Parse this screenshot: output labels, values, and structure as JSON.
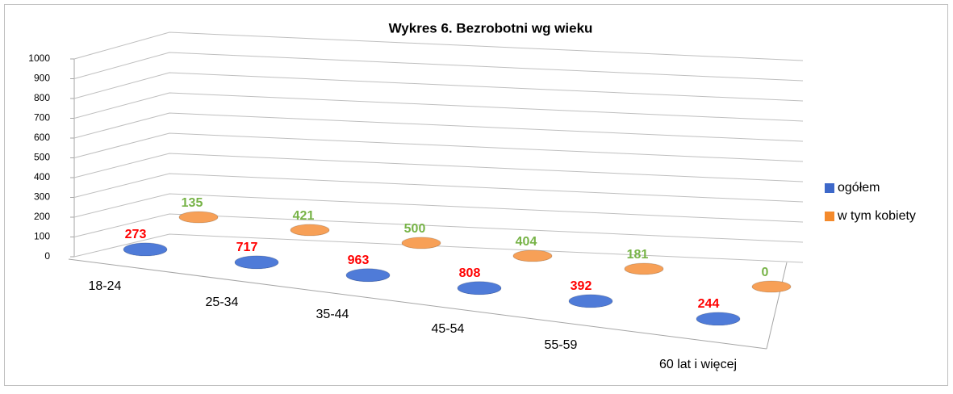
{
  "chart_data": {
    "type": "bar3d_cylinder",
    "title": "Wykres 6. Bezrobotni wg wieku",
    "categories": [
      "18-24",
      "25-34",
      "35-44",
      "45-54",
      "55-59",
      "60 lat i więcej"
    ],
    "series": [
      {
        "name": "ogółem",
        "color": "#3d68c9",
        "label_color": "#ff0000",
        "values": [
          273,
          717,
          963,
          808,
          392,
          244
        ]
      },
      {
        "name": "w tym kobiety",
        "color": "#f48a2c",
        "label_color": "#77b347",
        "values": [
          135,
          421,
          500,
          404,
          181,
          0
        ]
      }
    ],
    "ylim": [
      0,
      1000
    ],
    "yticks": [
      0,
      100,
      200,
      300,
      400,
      500,
      600,
      700,
      800,
      900,
      1000
    ],
    "grid": true,
    "legend": "right"
  }
}
